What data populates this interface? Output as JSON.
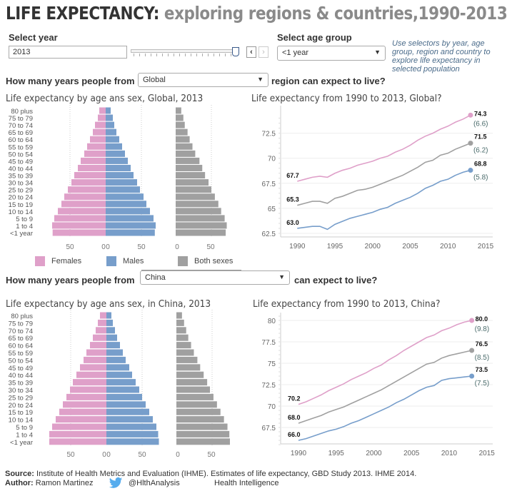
{
  "title": {
    "main": "LIFE EXPECTANCY:",
    "sub": " exploring regions & countries,1990-2013"
  },
  "controls": {
    "year_label": "Select year",
    "year_value": "2013",
    "year_slider_fraction": 1.0,
    "prev_icon": "chevron-left",
    "next_icon": "chevron-right",
    "age_label": "Select age group",
    "age_value": "<1 year",
    "note": "Use selectors by year, age group, region and country to explore life expectancy in selected population"
  },
  "section1": {
    "q_prefix": "How many years people from",
    "region": "Global",
    "q_suffix": "region can expect to live?"
  },
  "section2": {
    "q_prefix": "How many years people from",
    "region": "China",
    "q_suffix": "can expect to live?"
  },
  "legend": {
    "females": "Females",
    "males": "Males",
    "both": "Both sexes"
  },
  "colors": {
    "females": "#dfa0c9",
    "males": "#779ecb",
    "both": "#a0a0a0"
  },
  "footer": {
    "source_label": "Source:",
    "source_text": " Institute of Health Metrics and Evaluation (IHME). Estimates of life expectancy, GBD Study 2013. IHME 2014.",
    "author_label": "Author:",
    "author_text": " Ramon Martinez",
    "twitter_icon": "twitter-bird",
    "twitter": "@HlthAnalysis",
    "org": "Health Intelligence"
  },
  "chart_data": [
    {
      "type": "bar",
      "title": "Life expectancy by age ans sex, Global, 2013",
      "categories": [
        "80 plus",
        "75 to 79",
        "70 to 74",
        "65 to 69",
        "60 to 64",
        "55 to 59",
        "50 to 54",
        "45 to 49",
        "40 to 44",
        "35 to 39",
        "30 to 34",
        "25 to 29",
        "20 to 24",
        "15 to 19",
        "10 to 14",
        "5 to 9",
        "1 to 4",
        "<1 year"
      ],
      "series": [
        {
          "name": "Females",
          "values": [
            9,
            11,
            15,
            18,
            22,
            26,
            30,
            35,
            39,
            44,
            48,
            53,
            58,
            62,
            67,
            72,
            75,
            74.3
          ]
        },
        {
          "name": "Males",
          "values": [
            7,
            10,
            12,
            15,
            19,
            23,
            27,
            31,
            35,
            39,
            44,
            48,
            53,
            57,
            62,
            67,
            70,
            68.8
          ]
        },
        {
          "name": "Both sexes",
          "values": [
            8,
            11,
            13,
            17,
            20,
            24,
            28,
            34,
            38,
            42,
            47,
            51,
            56,
            61,
            65,
            70,
            73,
            71.5
          ]
        }
      ],
      "female_ticks": [
        "50",
        "0"
      ],
      "male_ticks": [
        "0",
        "50"
      ],
      "both_ticks": [
        "0",
        "50"
      ]
    },
    {
      "type": "line",
      "title": "Life expectancy from 1990 to 2013, Global?",
      "x": [
        1990,
        1991,
        1992,
        1993,
        1994,
        1995,
        1996,
        1997,
        1998,
        1999,
        2000,
        2001,
        2002,
        2003,
        2004,
        2005,
        2006,
        2007,
        2008,
        2009,
        2010,
        2011,
        2012,
        2013
      ],
      "xlim": [
        1988,
        2015
      ],
      "ylim": [
        62.3,
        74.5
      ],
      "xticks": [
        "1990",
        "1995",
        "2000",
        "2005",
        "2010",
        "2015"
      ],
      "yticks": [
        "62.5",
        "65",
        "67.5",
        "70",
        "72.5"
      ],
      "series": [
        {
          "name": "Females",
          "values": [
            67.7,
            67.9,
            68.1,
            68.2,
            68.1,
            68.5,
            68.8,
            69.0,
            69.3,
            69.5,
            69.7,
            70.0,
            70.2,
            70.6,
            70.9,
            71.3,
            71.8,
            72.2,
            72.5,
            72.9,
            73.2,
            73.6,
            73.9,
            74.3
          ],
          "start_label": "67.7",
          "end_label": "74.3",
          "gain_label": "(6.6)"
        },
        {
          "name": "Both sexes",
          "values": [
            65.3,
            65.5,
            65.7,
            65.7,
            65.5,
            66.0,
            66.2,
            66.5,
            66.8,
            66.9,
            67.1,
            67.4,
            67.7,
            68.0,
            68.3,
            68.7,
            69.1,
            69.6,
            69.8,
            70.3,
            70.5,
            70.9,
            71.2,
            71.5
          ],
          "start_label": "65.3",
          "end_label": "71.5",
          "gain_label": "(6.2)"
        },
        {
          "name": "Males",
          "values": [
            63.0,
            63.1,
            63.2,
            63.2,
            62.9,
            63.4,
            63.7,
            64.0,
            64.2,
            64.4,
            64.6,
            64.9,
            65.1,
            65.5,
            65.8,
            66.1,
            66.5,
            67.0,
            67.3,
            67.7,
            67.9,
            68.3,
            68.6,
            68.8
          ],
          "start_label": "63.0",
          "end_label": "68.8",
          "gain_label": "(5.8)"
        }
      ]
    },
    {
      "type": "bar",
      "title": "Life expectancy by age ans sex, in China, 2013",
      "categories": [
        "80 plus",
        "75 to 79",
        "70 to 74",
        "65 to 69",
        "60 to 64",
        "55 to 59",
        "50 to 54",
        "45 to 49",
        "40 to 44",
        "35 to 39",
        "30 to 34",
        "25 to 29",
        "20 to 24",
        "15 to 19",
        "10 to 14",
        "5 to 9",
        "1 to 4",
        "<1 year"
      ],
      "series": [
        {
          "name": "Females",
          "values": [
            9,
            12,
            15,
            19,
            23,
            28,
            32,
            37,
            42,
            47,
            51,
            56,
            61,
            66,
            71,
            76,
            80,
            80.0
          ]
        },
        {
          "name": "Males",
          "values": [
            7,
            9,
            12,
            15,
            19,
            23,
            27,
            32,
            36,
            41,
            46,
            50,
            55,
            60,
            65,
            70,
            72.5,
            73.5
          ]
        },
        {
          "name": "Both sexes",
          "values": [
            8,
            11,
            14,
            17,
            21,
            25,
            30,
            34,
            39,
            44,
            48,
            53,
            58,
            63,
            68,
            73,
            75.7,
            76.5
          ]
        }
      ],
      "female_ticks": [
        "50",
        "0"
      ],
      "male_ticks": [
        "0",
        "50"
      ],
      "both_ticks": [
        "0",
        "50"
      ]
    },
    {
      "type": "line",
      "title": "Life expectancy from 1990 to 2013, China?",
      "x": [
        1990,
        1991,
        1992,
        1993,
        1994,
        1995,
        1996,
        1997,
        1998,
        1999,
        2000,
        2001,
        2002,
        2003,
        2004,
        2005,
        2006,
        2007,
        2008,
        2009,
        2010,
        2011,
        2012,
        2013
      ],
      "xlim": [
        1988,
        2015
      ],
      "ylim": [
        65.3,
        80.6
      ],
      "xticks": [
        "1990",
        "1995",
        "2000",
        "2005",
        "2010",
        "2015"
      ],
      "yticks": [
        "67.5",
        "70",
        "72.5",
        "75",
        "77.5",
        "80"
      ],
      "series": [
        {
          "name": "Females",
          "values": [
            70.2,
            70.5,
            70.9,
            71.3,
            71.8,
            72.2,
            72.6,
            73.1,
            73.5,
            73.9,
            74.4,
            74.8,
            75.4,
            75.9,
            76.5,
            77.0,
            77.5,
            78.0,
            78.3,
            78.8,
            79.1,
            79.5,
            79.8,
            80.0
          ],
          "start_label": "70.2",
          "end_label": "80.0",
          "gain_label": "(9.8)"
        },
        {
          "name": "Both sexes",
          "values": [
            68.0,
            68.3,
            68.6,
            68.9,
            69.3,
            69.6,
            69.9,
            70.3,
            70.7,
            71.1,
            71.5,
            71.9,
            72.4,
            72.9,
            73.4,
            73.9,
            74.4,
            74.9,
            75.1,
            75.6,
            75.9,
            76.1,
            76.3,
            76.5
          ],
          "start_label": "68.0",
          "end_label": "76.5",
          "gain_label": "(8.5)"
        },
        {
          "name": "Males",
          "values": [
            66.0,
            66.2,
            66.5,
            66.8,
            67.1,
            67.3,
            67.6,
            68.0,
            68.3,
            68.7,
            69.1,
            69.5,
            69.9,
            70.4,
            70.8,
            71.3,
            71.8,
            72.2,
            72.4,
            73.0,
            73.2,
            73.3,
            73.4,
            73.5
          ],
          "start_label": "66.0",
          "end_label": "73.5",
          "gain_label": "(7.5)"
        }
      ]
    }
  ]
}
